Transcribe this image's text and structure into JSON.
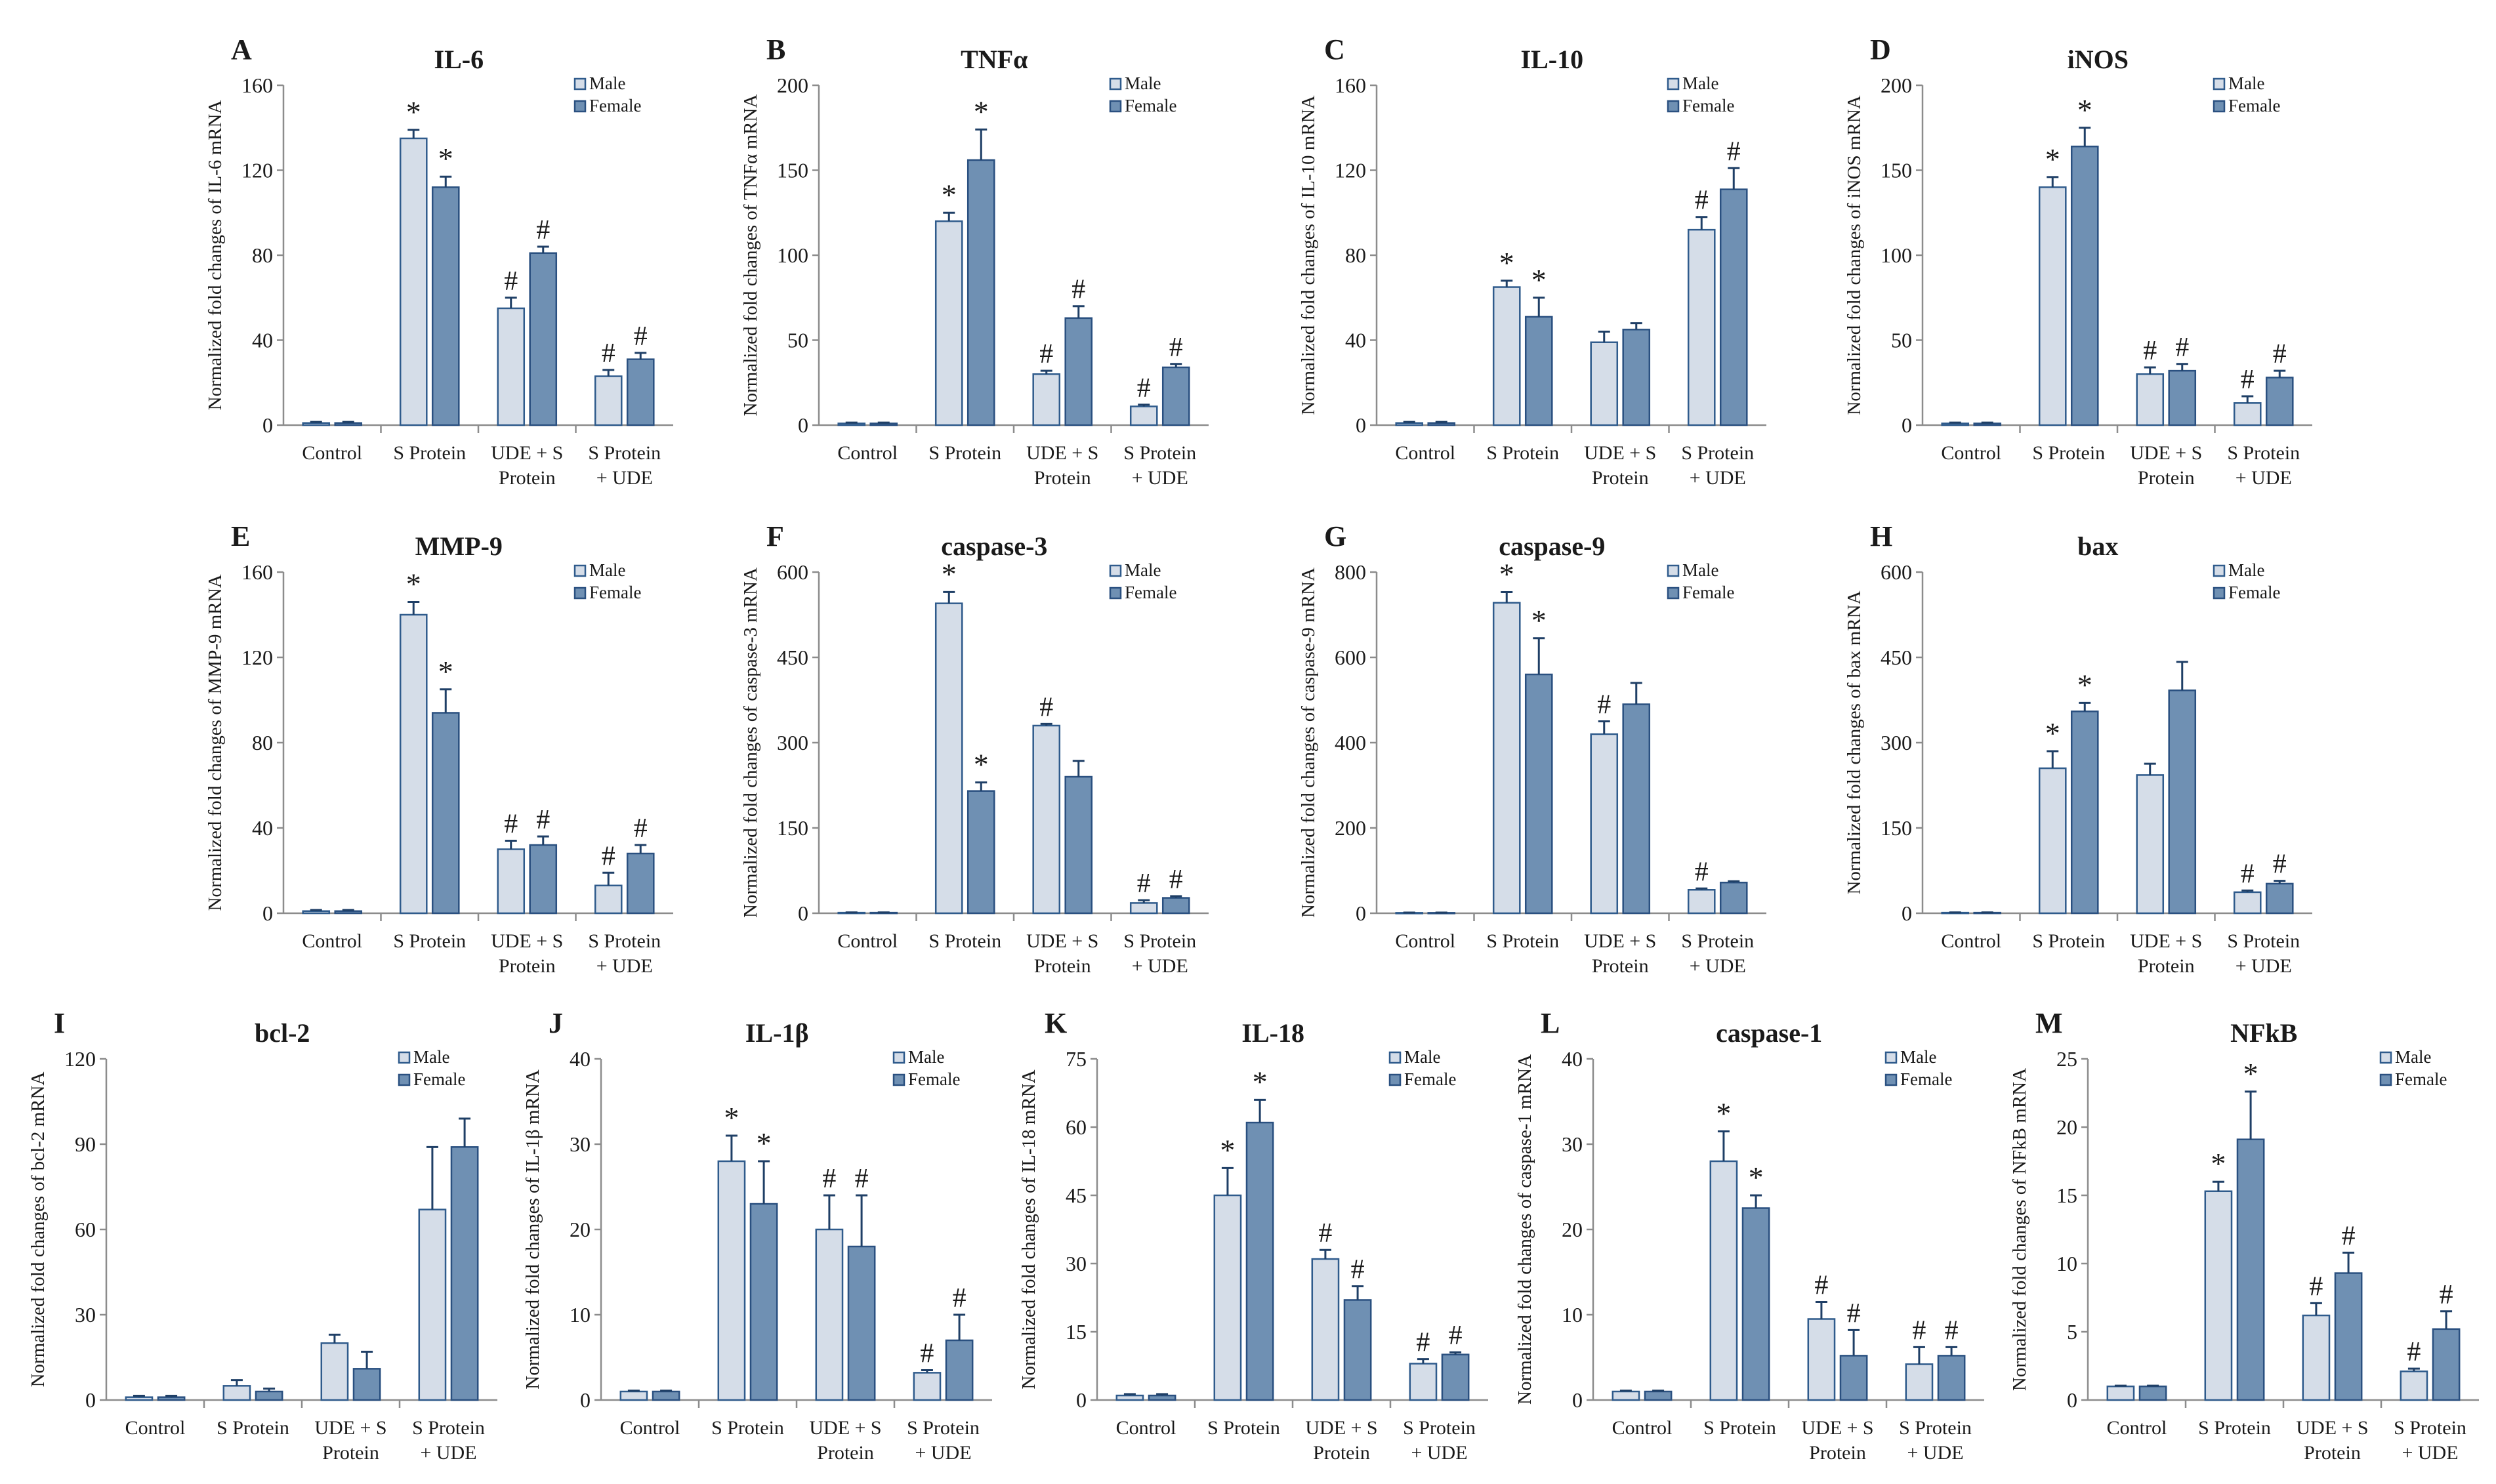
{
  "figure": {
    "layout": "Three rows of bar charts: four panels in row 1, four in row 2, five in row 3"
  },
  "legend": {
    "male": "Male",
    "female": "Female",
    "male_color": "#d5dde8",
    "female_color": "#6f90b3"
  },
  "chart_data": [
    {
      "letter": "A",
      "type": "bar",
      "title": "IL-6",
      "ylabel": "Normalized fold changes of IL-6 mRNA",
      "ylim": [
        0,
        160
      ],
      "yticks": [
        0,
        40,
        80,
        120,
        160
      ],
      "categories": [
        "Control",
        "S Protein",
        "UDE + S Protein",
        "S Protein + UDE"
      ],
      "series": [
        {
          "name": "Male",
          "values": [
            1,
            135,
            55,
            23
          ],
          "errors": [
            0.5,
            4,
            5,
            3
          ],
          "markers": [
            "",
            "*",
            "#",
            "#"
          ]
        },
        {
          "name": "Female",
          "values": [
            1,
            112,
            81,
            31
          ],
          "errors": [
            0.5,
            5,
            3,
            3
          ],
          "markers": [
            "",
            "*",
            "#",
            "#"
          ]
        }
      ]
    },
    {
      "letter": "B",
      "type": "bar",
      "title": "TNFα",
      "ylabel": "Normalized fold changes of TNFα mRNA",
      "ylim": [
        0,
        200
      ],
      "yticks": [
        0,
        50,
        100,
        150,
        200
      ],
      "categories": [
        "Control",
        "S Protein",
        "UDE + S Protein",
        "S Protein + UDE"
      ],
      "series": [
        {
          "name": "Male",
          "values": [
            1,
            120,
            30,
            11
          ],
          "errors": [
            0.5,
            5,
            2,
            1
          ],
          "markers": [
            "",
            "*",
            "#",
            "#"
          ]
        },
        {
          "name": "Female",
          "values": [
            1,
            156,
            63,
            34
          ],
          "errors": [
            0.5,
            18,
            7,
            2
          ],
          "markers": [
            "",
            "*",
            "#",
            "#"
          ]
        }
      ]
    },
    {
      "letter": "C",
      "type": "bar",
      "title": "IL-10",
      "ylabel": "Normalized fold changes of IL-10 mRNA",
      "ylim": [
        0,
        160
      ],
      "yticks": [
        0,
        40,
        80,
        120,
        160
      ],
      "categories": [
        "Control",
        "S Protein",
        "UDE + S Protein",
        "S Protein + UDE"
      ],
      "series": [
        {
          "name": "Male",
          "values": [
            1,
            65,
            39,
            92
          ],
          "errors": [
            0.5,
            3,
            5,
            6
          ],
          "markers": [
            "",
            "*",
            "",
            "#"
          ]
        },
        {
          "name": "Female",
          "values": [
            1,
            51,
            45,
            111
          ],
          "errors": [
            0.5,
            9,
            3,
            10
          ],
          "markers": [
            "",
            "*",
            "",
            "#"
          ]
        }
      ]
    },
    {
      "letter": "D",
      "type": "bar",
      "title": "iNOS",
      "ylabel": "Normalized fold changes of iNOS mRNA",
      "ylim": [
        0,
        200
      ],
      "yticks": [
        0,
        50,
        100,
        150,
        200
      ],
      "categories": [
        "Control",
        "S Protein",
        "UDE + S Protein",
        "S Protein + UDE"
      ],
      "series": [
        {
          "name": "Male",
          "values": [
            1,
            140,
            30,
            13
          ],
          "errors": [
            0.5,
            6,
            4,
            4
          ],
          "markers": [
            "",
            "*",
            "#",
            "#"
          ]
        },
        {
          "name": "Female",
          "values": [
            1,
            164,
            32,
            28
          ],
          "errors": [
            0.5,
            11,
            4,
            4
          ],
          "markers": [
            "",
            "*",
            "#",
            "#"
          ]
        }
      ]
    },
    {
      "letter": "E",
      "type": "bar",
      "title": "MMP-9",
      "ylabel": "Normalized fold changes of MMP-9 mRNA",
      "ylim": [
        0,
        160
      ],
      "yticks": [
        0,
        40,
        80,
        120,
        160
      ],
      "categories": [
        "Control",
        "S Protein",
        "UDE + S Protein",
        "S Protein + UDE"
      ],
      "series": [
        {
          "name": "Male",
          "values": [
            1,
            140,
            30,
            13
          ],
          "errors": [
            0.5,
            6,
            4,
            6
          ],
          "markers": [
            "",
            "*",
            "#",
            "#"
          ]
        },
        {
          "name": "Female",
          "values": [
            1,
            94,
            32,
            28
          ],
          "errors": [
            0.5,
            11,
            4,
            4
          ],
          "markers": [
            "",
            "*",
            "#",
            "#"
          ]
        }
      ]
    },
    {
      "letter": "F",
      "type": "bar",
      "title": "caspase-3",
      "ylabel": "Normalized fold changes of caspase-3 mRNA",
      "ylim": [
        0,
        600
      ],
      "yticks": [
        0,
        150,
        300,
        450,
        600
      ],
      "categories": [
        "Control",
        "S Protein",
        "UDE + S Protein",
        "S Protein + UDE"
      ],
      "series": [
        {
          "name": "Male",
          "values": [
            1,
            545,
            330,
            18
          ],
          "errors": [
            0.5,
            20,
            3,
            5
          ],
          "markers": [
            "",
            "*",
            "#",
            "#"
          ]
        },
        {
          "name": "Female",
          "values": [
            1,
            215,
            240,
            27
          ],
          "errors": [
            0.5,
            15,
            28,
            3
          ],
          "markers": [
            "",
            "*",
            "",
            "#"
          ]
        }
      ]
    },
    {
      "letter": "G",
      "type": "bar",
      "title": "caspase-9",
      "ylabel": "Normalized fold changes of caspase-9 mRNA",
      "ylim": [
        0,
        800
      ],
      "yticks": [
        0,
        200,
        400,
        600,
        800
      ],
      "categories": [
        "Control",
        "S Protein",
        "UDE + S Protein",
        "S Protein + UDE"
      ],
      "series": [
        {
          "name": "Male",
          "values": [
            1,
            728,
            420,
            55
          ],
          "errors": [
            0.5,
            25,
            30,
            3
          ],
          "markers": [
            "",
            "*",
            "#",
            "#"
          ]
        },
        {
          "name": "Female",
          "values": [
            1,
            560,
            490,
            72
          ],
          "errors": [
            0.5,
            85,
            50,
            3
          ],
          "markers": [
            "",
            "*",
            "",
            ""
          ]
        }
      ]
    },
    {
      "letter": "H",
      "type": "bar",
      "title": "bax",
      "ylabel": "Normalized fold changes of bax mRNA",
      "ylim": [
        0,
        600
      ],
      "yticks": [
        0,
        150,
        300,
        450,
        600
      ],
      "categories": [
        "Control",
        "S Protein",
        "UDE + S Protein",
        "S Protein + UDE"
      ],
      "series": [
        {
          "name": "Male",
          "values": [
            1,
            255,
            243,
            37
          ],
          "errors": [
            0.5,
            30,
            20,
            3
          ],
          "markers": [
            "",
            "*",
            "",
            "#"
          ]
        },
        {
          "name": "Female",
          "values": [
            1,
            355,
            392,
            52
          ],
          "errors": [
            0.5,
            15,
            50,
            5
          ],
          "markers": [
            "",
            "*",
            "",
            "#"
          ]
        }
      ]
    },
    {
      "letter": "I",
      "type": "bar",
      "title": "bcl-2",
      "ylabel": "Normalized fold changes of bcl-2 mRNA",
      "ylim": [
        0,
        120
      ],
      "yticks": [
        0,
        30,
        60,
        90,
        120
      ],
      "categories": [
        "Control",
        "S Protein",
        "UDE + S Protein",
        "S Protein + UDE"
      ],
      "series": [
        {
          "name": "Male",
          "values": [
            1,
            5,
            20,
            67
          ],
          "errors": [
            0.5,
            2,
            3,
            22
          ],
          "markers": [
            "",
            "",
            "",
            ""
          ]
        },
        {
          "name": "Female",
          "values": [
            1,
            3,
            11,
            89
          ],
          "errors": [
            0.5,
            1,
            6,
            10
          ],
          "markers": [
            "",
            "",
            "",
            ""
          ]
        }
      ]
    },
    {
      "letter": "J",
      "type": "bar",
      "title": "IL-1β",
      "ylabel": "Normalized fold changes of IL-1β mRNA",
      "ylim": [
        0,
        40
      ],
      "yticks": [
        0,
        10,
        20,
        30,
        40
      ],
      "categories": [
        "Control",
        "S Protein",
        "UDE + S Protein",
        "S Protein + UDE"
      ],
      "series": [
        {
          "name": "Male",
          "values": [
            1,
            28,
            20,
            3.2
          ],
          "errors": [
            0.1,
            3,
            4,
            0.3
          ],
          "markers": [
            "",
            "*",
            "#",
            "#"
          ]
        },
        {
          "name": "Female",
          "values": [
            1,
            23,
            18,
            7
          ],
          "errors": [
            0.1,
            5,
            6,
            3
          ],
          "markers": [
            "",
            "*",
            "#",
            "#"
          ]
        }
      ]
    },
    {
      "letter": "K",
      "type": "bar",
      "title": "IL-18",
      "ylabel": "Normalized fold changes of IL-18 mRNA",
      "ylim": [
        0,
        75
      ],
      "yticks": [
        0,
        15,
        30,
        45,
        60,
        75
      ],
      "categories": [
        "Control",
        "S Protein",
        "UDE + S Protein",
        "S Protein + UDE"
      ],
      "series": [
        {
          "name": "Male",
          "values": [
            1,
            45,
            31,
            8
          ],
          "errors": [
            0.3,
            6,
            2,
            1
          ],
          "markers": [
            "",
            "*",
            "#",
            "#"
          ]
        },
        {
          "name": "Female",
          "values": [
            1,
            61,
            22,
            10
          ],
          "errors": [
            0.3,
            5,
            3,
            0.5
          ],
          "markers": [
            "",
            "*",
            "#",
            "#"
          ]
        }
      ]
    },
    {
      "letter": "L",
      "type": "bar",
      "title": "caspase-1",
      "ylabel": "Normalized fold changes of caspase-1 mRNA",
      "ylim": [
        0,
        40
      ],
      "yticks": [
        0,
        10,
        20,
        30,
        40
      ],
      "categories": [
        "Control",
        "S Protein",
        "UDE + S Protein",
        "S Protein + UDE"
      ],
      "series": [
        {
          "name": "Male",
          "values": [
            1,
            28,
            9.5,
            4.2
          ],
          "errors": [
            0.1,
            3.5,
            2,
            2
          ],
          "markers": [
            "",
            "*",
            "#",
            "#"
          ]
        },
        {
          "name": "Female",
          "values": [
            1,
            22.5,
            5.2,
            5.2
          ],
          "errors": [
            0.1,
            1.5,
            3,
            1
          ],
          "markers": [
            "",
            "*",
            "#",
            "#"
          ]
        }
      ]
    },
    {
      "letter": "M",
      "type": "bar",
      "title": "NFkB",
      "ylabel": "Normalized fold changes of NFkB mRNA",
      "ylim": [
        0,
        25
      ],
      "yticks": [
        0,
        5,
        10,
        15,
        20,
        25
      ],
      "categories": [
        "Control",
        "S Protein",
        "UDE + S Protein",
        "S Protein + UDE"
      ],
      "series": [
        {
          "name": "Male",
          "values": [
            1,
            15.3,
            6.2,
            2.1
          ],
          "errors": [
            0.05,
            0.7,
            0.9,
            0.2
          ],
          "markers": [
            "",
            "*",
            "#",
            "#"
          ]
        },
        {
          "name": "Female",
          "values": [
            1,
            19.1,
            9.3,
            5.2
          ],
          "errors": [
            0.05,
            3.5,
            1.5,
            1.3
          ],
          "markers": [
            "",
            "*",
            "#",
            "#"
          ]
        }
      ]
    }
  ]
}
